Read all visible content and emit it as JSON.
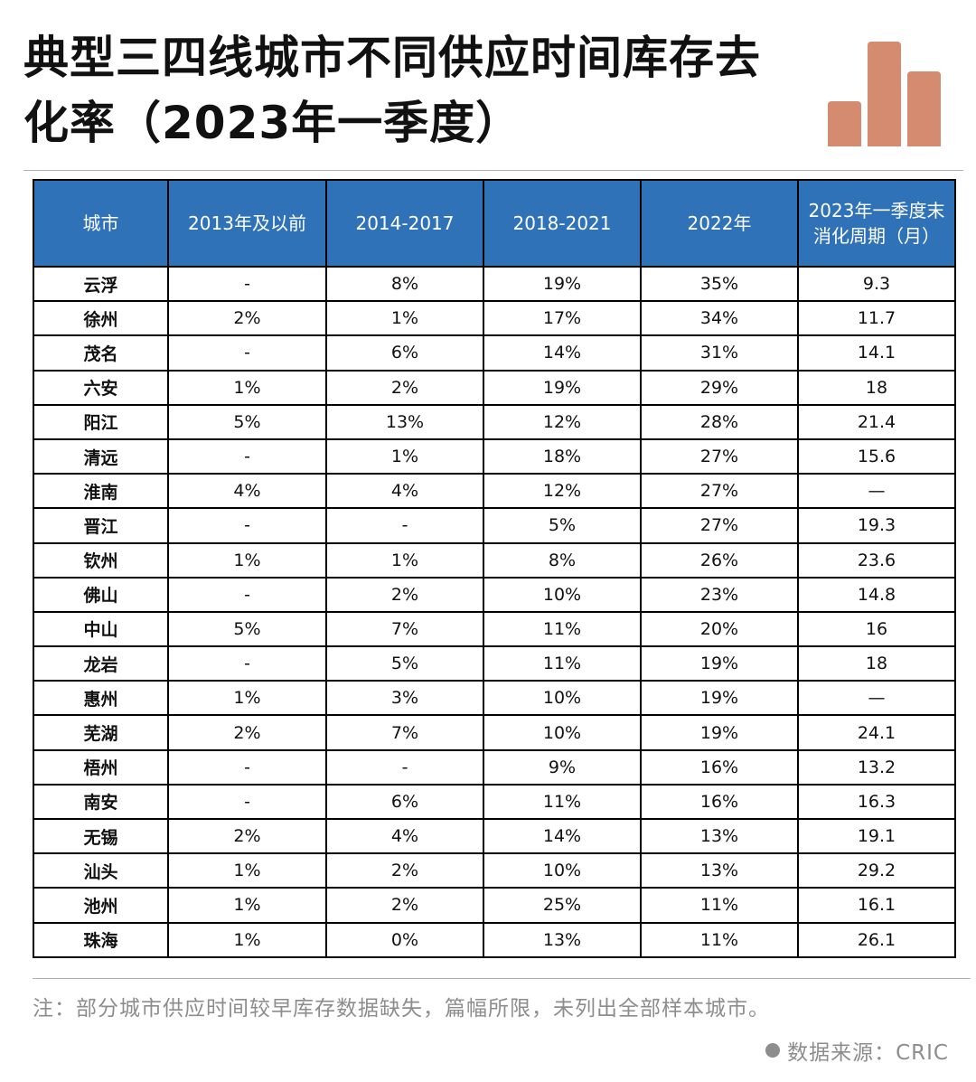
{
  "title": "典型三四线城市不同供应时间库存去化率（2023年一季度）",
  "colors": {
    "header": "#2f72b8",
    "logo": "#d58b70"
  },
  "chart_data": {
    "type": "table",
    "columns": [
      "城市",
      "2013年及以前",
      "2014-2017",
      "2018-2021",
      "2022年",
      "2023年一季度末消化周期（月）"
    ],
    "rows": [
      [
        "云浮",
        "-",
        "8%",
        "19%",
        "35%",
        "9.3"
      ],
      [
        "徐州",
        "2%",
        "1%",
        "17%",
        "34%",
        "11.7"
      ],
      [
        "茂名",
        "-",
        "6%",
        "14%",
        "31%",
        "14.1"
      ],
      [
        "六安",
        "1%",
        "2%",
        "19%",
        "29%",
        "18"
      ],
      [
        "阳江",
        "5%",
        "13%",
        "12%",
        "28%",
        "21.4"
      ],
      [
        "清远",
        "-",
        "1%",
        "18%",
        "27%",
        "15.6"
      ],
      [
        "淮南",
        "4%",
        "4%",
        "12%",
        "27%",
        "—"
      ],
      [
        "晋江",
        "-",
        "-",
        "5%",
        "27%",
        "19.3"
      ],
      [
        "钦州",
        "1%",
        "1%",
        "8%",
        "26%",
        "23.6"
      ],
      [
        "佛山",
        "-",
        "2%",
        "10%",
        "23%",
        "14.8"
      ],
      [
        "中山",
        "5%",
        "7%",
        "11%",
        "20%",
        "16"
      ],
      [
        "龙岩",
        "-",
        "5%",
        "11%",
        "19%",
        "18"
      ],
      [
        "惠州",
        "1%",
        "3%",
        "10%",
        "19%",
        "—"
      ],
      [
        "芜湖",
        "2%",
        "7%",
        "10%",
        "19%",
        "24.1"
      ],
      [
        "梧州",
        "-",
        "-",
        "9%",
        "16%",
        "13.2"
      ],
      [
        "南安",
        "-",
        "6%",
        "11%",
        "16%",
        "16.3"
      ],
      [
        "无锡",
        "2%",
        "4%",
        "14%",
        "13%",
        "19.1"
      ],
      [
        "汕头",
        "1%",
        "2%",
        "10%",
        "13%",
        "29.2"
      ],
      [
        "池州",
        "1%",
        "2%",
        "25%",
        "11%",
        "16.1"
      ],
      [
        "珠海",
        "1%",
        "0%",
        "13%",
        "11%",
        "26.1"
      ]
    ]
  },
  "note": "注：部分城市供应时间较早库存数据缺失，篇幅所限，未列出全部样本城市。",
  "source": "数据来源：CRIC"
}
